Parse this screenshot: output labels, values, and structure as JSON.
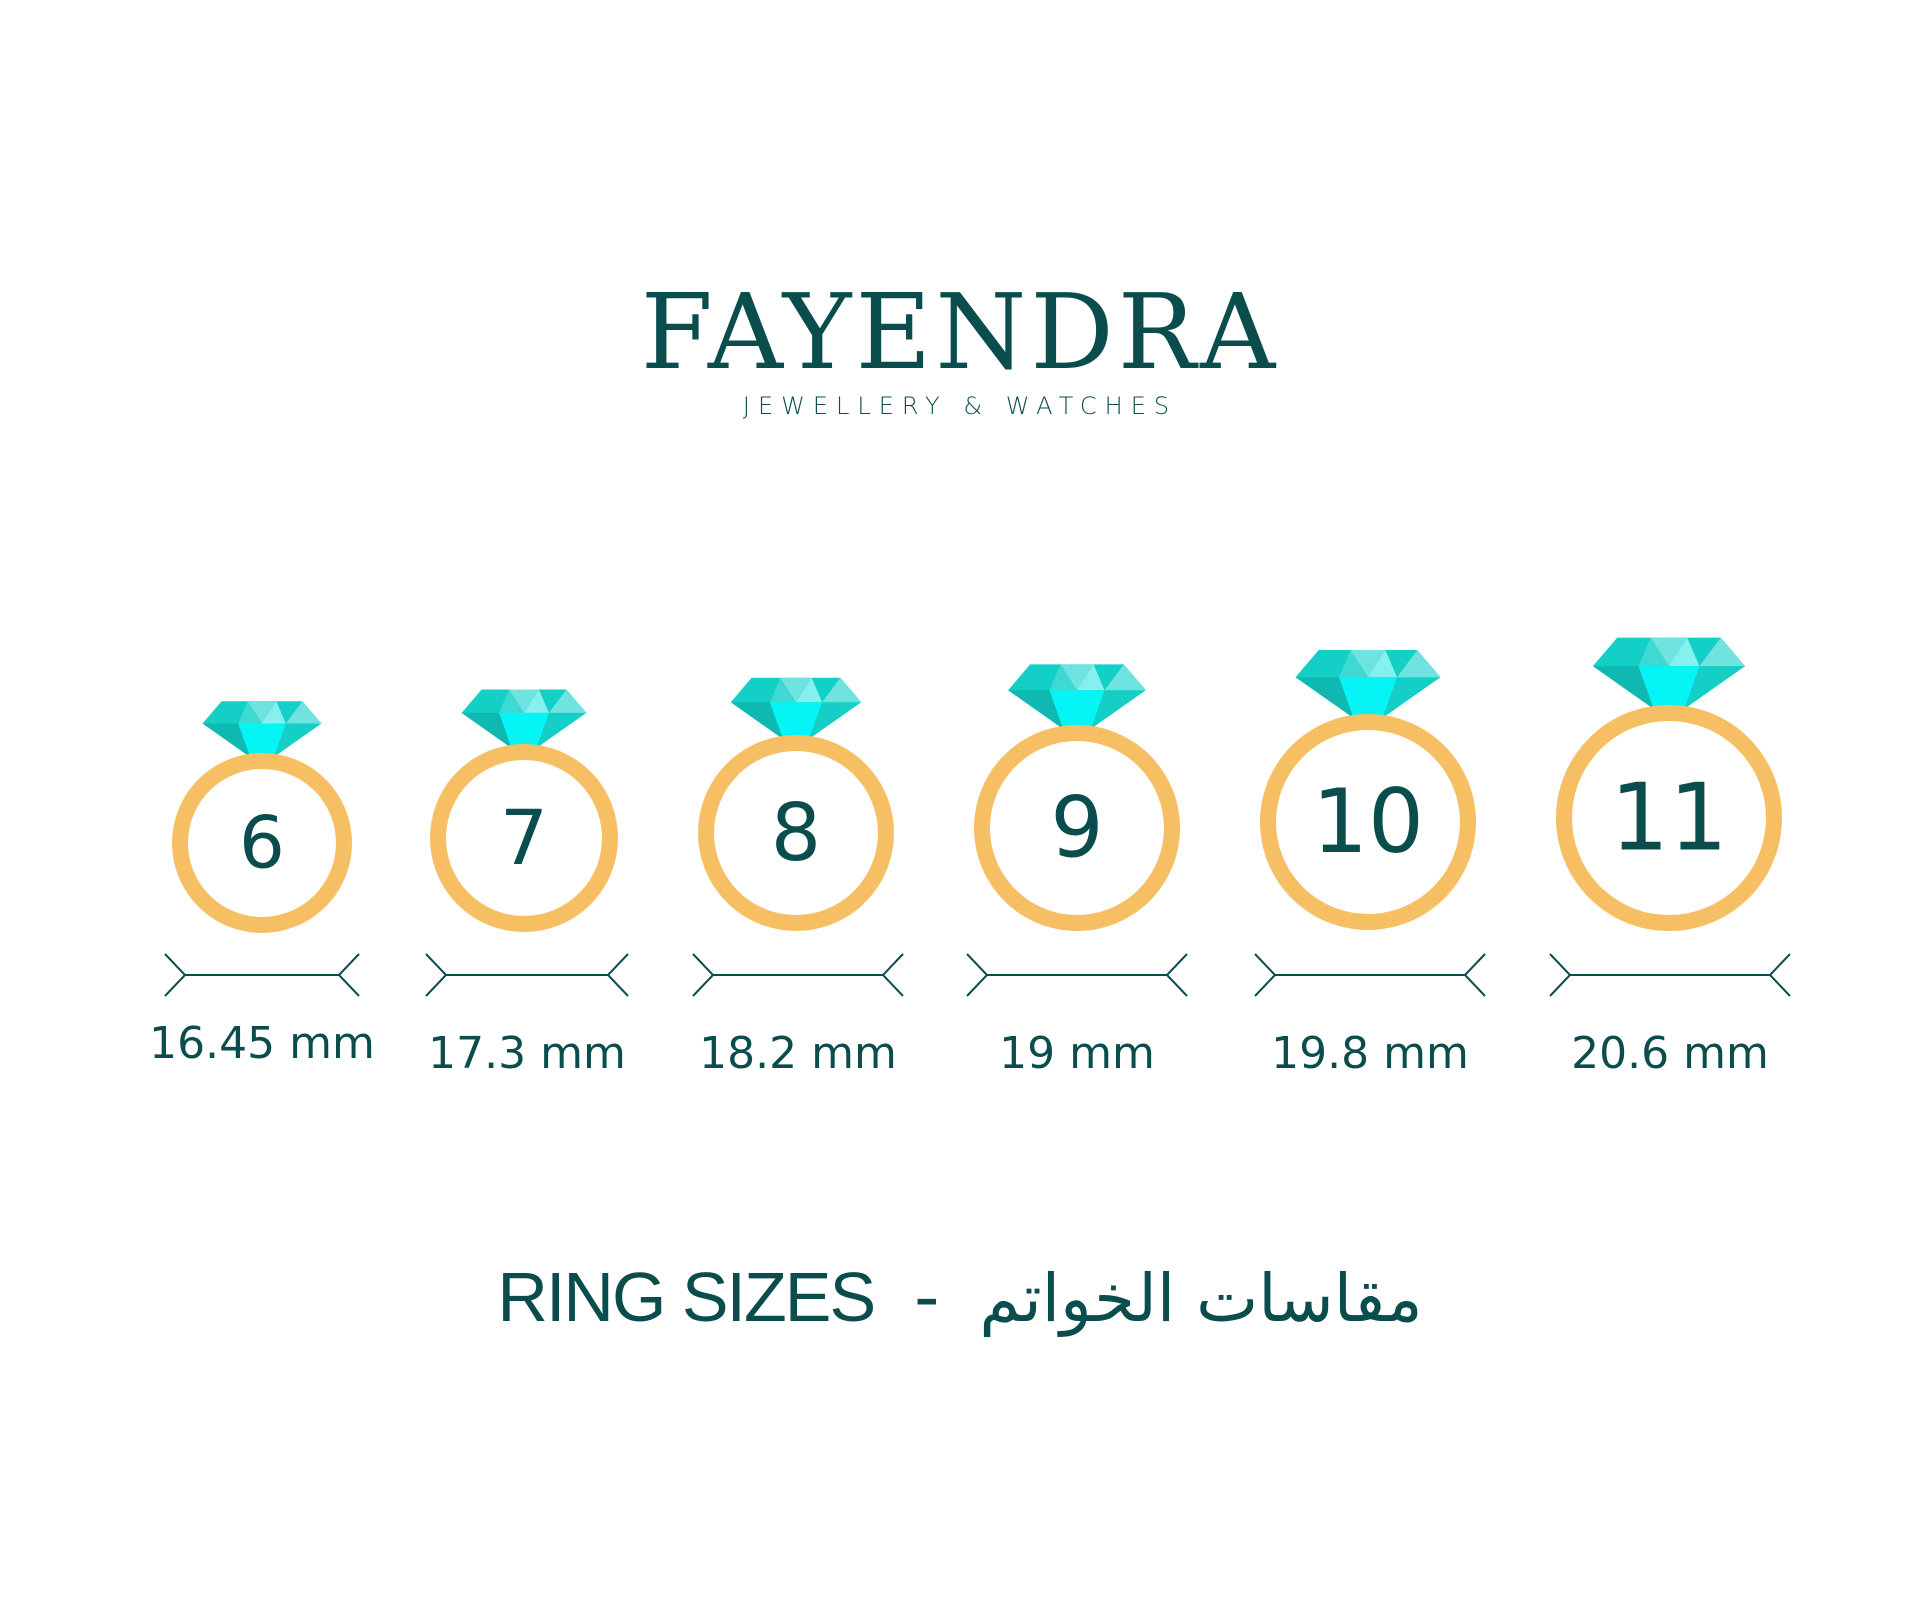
{
  "brand": {
    "name": "FAYENDRA",
    "tagline": "JEWELLERY & WATCHES",
    "color": "#0b4d4d"
  },
  "colors": {
    "ring_band": "#f6bf63",
    "text": "#0b4d4d",
    "gem_main": "#13cfc6",
    "gem_light": "#6fe3df",
    "gem_bright": "#05f5f7",
    "gem_dark": "#0fb9b2"
  },
  "icons": {
    "gem": "diamond-icon",
    "ring": "ring-icon",
    "measure": "double-arrow-icon"
  },
  "rings": [
    {
      "size": "6",
      "diameter": "16.45 mm"
    },
    {
      "size": "7",
      "diameter": "17.3 mm"
    },
    {
      "size": "8",
      "diameter": "18.2 mm"
    },
    {
      "size": "9",
      "diameter": "19 mm"
    },
    {
      "size": "10",
      "diameter": "19.8 mm"
    },
    {
      "size": "11",
      "diameter": "20.6 mm"
    }
  ],
  "footer": {
    "title_en": "RING SIZES",
    "separator": "-",
    "title_ar": "مقاسات الخواتم"
  }
}
